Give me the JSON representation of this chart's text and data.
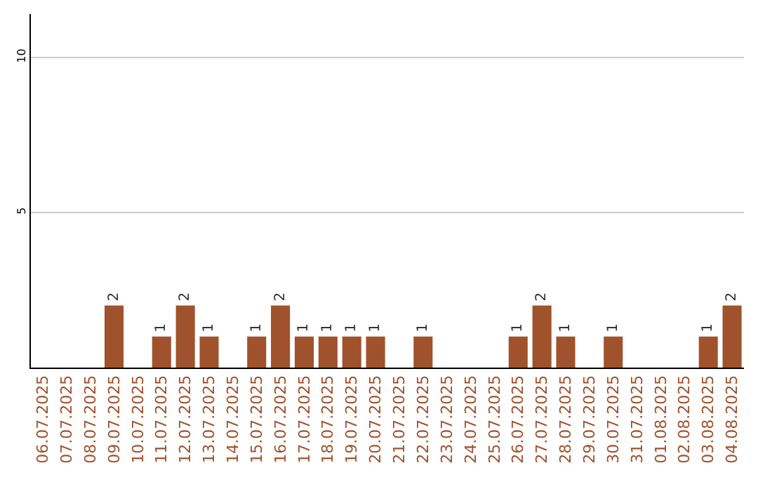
{
  "chart_data": {
    "type": "bar",
    "categories": [
      "06.07.2025",
      "07.07.2025",
      "08.07.2025",
      "09.07.2025",
      "10.07.2025",
      "11.07.2025",
      "12.07.2025",
      "13.07.2025",
      "14.07.2025",
      "15.07.2025",
      "16.07.2025",
      "17.07.2025",
      "18.07.2025",
      "19.07.2025",
      "20.07.2025",
      "21.07.2025",
      "22.07.2025",
      "23.07.2025",
      "24.07.2025",
      "25.07.2025",
      "26.07.2025",
      "27.07.2025",
      "28.07.2025",
      "29.07.2025",
      "30.07.2025",
      "31.07.2025",
      "01.08.2025",
      "02.08.2025",
      "03.08.2025",
      "04.08.2025"
    ],
    "values": [
      0,
      0,
      0,
      2,
      0,
      1,
      2,
      1,
      0,
      1,
      2,
      1,
      1,
      1,
      1,
      0,
      1,
      0,
      0,
      0,
      1,
      2,
      1,
      0,
      1,
      0,
      0,
      0,
      1,
      2
    ],
    "value_labels": [
      null,
      null,
      null,
      "2",
      null,
      "1",
      "2",
      "1",
      null,
      "1",
      "2",
      "1",
      "1",
      "1",
      "1",
      null,
      "1",
      null,
      null,
      null,
      "1",
      "2",
      "1",
      null,
      "1",
      null,
      null,
      null,
      "1",
      "2"
    ],
    "color": "#a0522d",
    "ylim": [
      0,
      11.4
    ],
    "yticks": [
      5,
      10
    ],
    "grid": "y",
    "legend": false
  }
}
